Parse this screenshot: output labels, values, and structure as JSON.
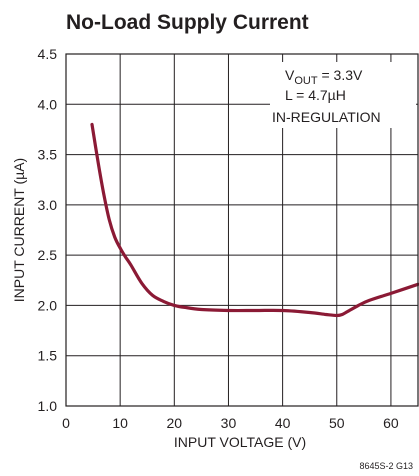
{
  "chart_data": {
    "type": "line",
    "title": "No-Load Supply Current",
    "xlabel": "INPUT VOLTAGE (V)",
    "ylabel": "INPUT CURRENT (µA)",
    "xlim": [
      0,
      65
    ],
    "ylim": [
      1.0,
      4.5
    ],
    "xticks": [
      "0",
      "10",
      "20",
      "30",
      "40",
      "50",
      "60"
    ],
    "yticks": [
      "1.0",
      "1.5",
      "2.0",
      "2.5",
      "3.0",
      "3.5",
      "4.0",
      "4.5"
    ],
    "grid": true,
    "line_color": "#8b1a35",
    "annotations": {
      "vout_prefix": "V",
      "vout_sub": "OUT",
      "vout_value": " = 3.3V",
      "inductance": "L = 4.7µH",
      "mode": "IN-REGULATION"
    },
    "series": [
      {
        "x": [
          4.8,
          6,
          7,
          8,
          9,
          10,
          11,
          12,
          14,
          16,
          18,
          20,
          22,
          25,
          30,
          35,
          40,
          45,
          48,
          50,
          51,
          52,
          54,
          56,
          60,
          65
        ],
        "y": [
          3.8,
          3.4,
          3.1,
          2.85,
          2.68,
          2.57,
          2.48,
          2.4,
          2.22,
          2.1,
          2.04,
          2.0,
          1.98,
          1.96,
          1.95,
          1.95,
          1.95,
          1.93,
          1.91,
          1.9,
          1.91,
          1.94,
          2.0,
          2.05,
          2.12,
          2.21
        ]
      }
    ]
  },
  "figure_id": "8645S-2 G13"
}
